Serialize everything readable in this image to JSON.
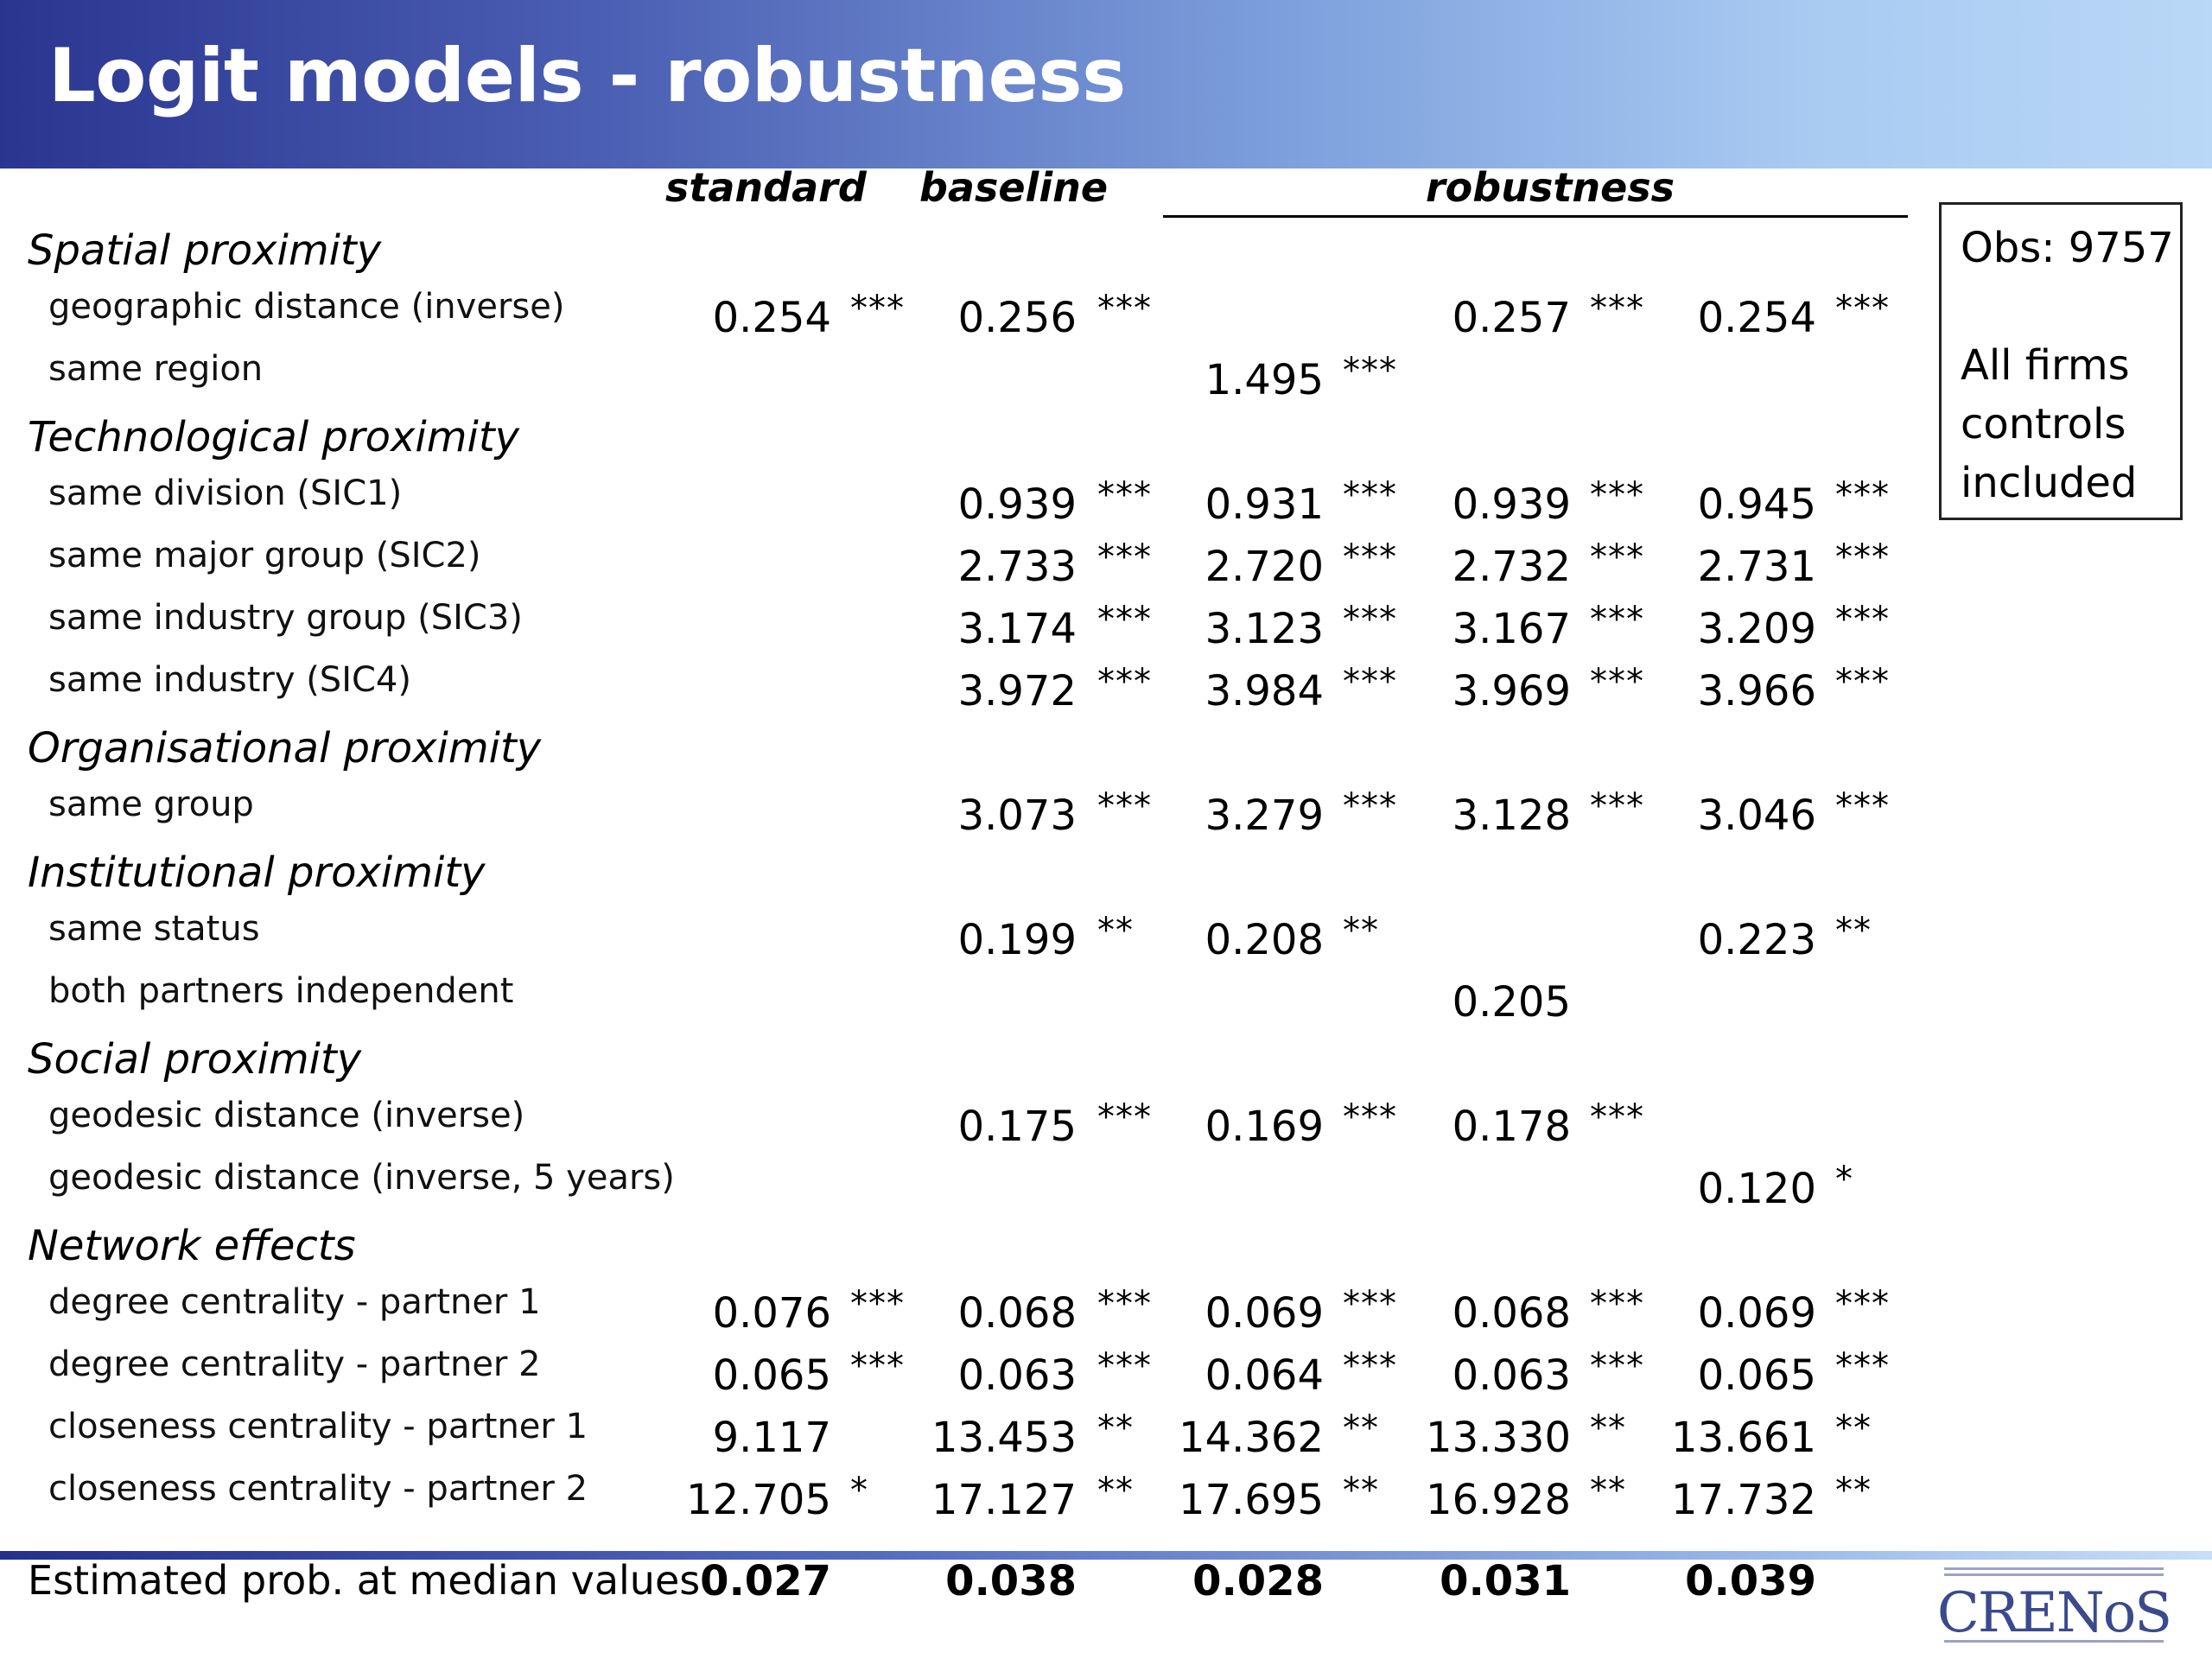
{
  "title": "Logit models - robustness",
  "columns": {
    "standard": "standard",
    "baseline": "baseline",
    "robustness": "robustness"
  },
  "obs_box": {
    "line1": "Obs: 9757",
    "line2": "All firms",
    "line3": "controls",
    "line4": "included"
  },
  "categories": [
    {
      "label": "Spatial proximity"
    },
    {
      "label": "Technological proximity"
    },
    {
      "label": "Organisational proximity"
    },
    {
      "label": "Institutional proximity"
    },
    {
      "label": "Social proximity"
    },
    {
      "label": "Network effects"
    }
  ],
  "rows": [
    {
      "label": "geographic distance (inverse)",
      "cells": [
        {
          "v": "0.254",
          "s": "***"
        },
        {
          "v": "0.256",
          "s": "***"
        },
        {
          "v": "",
          "s": ""
        },
        {
          "v": "0.257",
          "s": "***"
        },
        {
          "v": "0.254",
          "s": "***"
        }
      ]
    },
    {
      "label": "same region",
      "cells": [
        {
          "v": "",
          "s": ""
        },
        {
          "v": "",
          "s": ""
        },
        {
          "v": "1.495",
          "s": "***"
        },
        {
          "v": "",
          "s": ""
        },
        {
          "v": "",
          "s": ""
        }
      ]
    },
    {
      "label": "same division  (SIC1)",
      "cells": [
        {
          "v": "",
          "s": ""
        },
        {
          "v": "0.939",
          "s": "***"
        },
        {
          "v": "0.931",
          "s": "***"
        },
        {
          "v": "0.939",
          "s": "***"
        },
        {
          "v": "0.945",
          "s": "***"
        }
      ]
    },
    {
      "label": "same major group  (SIC2)",
      "cells": [
        {
          "v": "",
          "s": ""
        },
        {
          "v": "2.733",
          "s": "***"
        },
        {
          "v": "2.720",
          "s": "***"
        },
        {
          "v": "2.732",
          "s": "***"
        },
        {
          "v": "2.731",
          "s": "***"
        }
      ]
    },
    {
      "label": "same industry group (SIC3)",
      "cells": [
        {
          "v": "",
          "s": ""
        },
        {
          "v": "3.174",
          "s": "***"
        },
        {
          "v": "3.123",
          "s": "***"
        },
        {
          "v": "3.167",
          "s": "***"
        },
        {
          "v": "3.209",
          "s": "***"
        }
      ]
    },
    {
      "label": "same industry (SIC4)",
      "cells": [
        {
          "v": "",
          "s": ""
        },
        {
          "v": "3.972",
          "s": "***"
        },
        {
          "v": "3.984",
          "s": "***"
        },
        {
          "v": "3.969",
          "s": "***"
        },
        {
          "v": "3.966",
          "s": "***"
        }
      ]
    },
    {
      "label": "same group",
      "cells": [
        {
          "v": "",
          "s": ""
        },
        {
          "v": "3.073",
          "s": "***"
        },
        {
          "v": "3.279",
          "s": "***"
        },
        {
          "v": "3.128",
          "s": "***"
        },
        {
          "v": "3.046",
          "s": "***"
        }
      ]
    },
    {
      "label": "same status",
      "cells": [
        {
          "v": "",
          "s": ""
        },
        {
          "v": "0.199",
          "s": "**"
        },
        {
          "v": "0.208",
          "s": "**"
        },
        {
          "v": "",
          "s": ""
        },
        {
          "v": "0.223",
          "s": "**"
        }
      ]
    },
    {
      "label": "both partners independent",
      "cells": [
        {
          "v": "",
          "s": ""
        },
        {
          "v": "",
          "s": ""
        },
        {
          "v": "",
          "s": ""
        },
        {
          "v": "0.205",
          "s": ""
        },
        {
          "v": "",
          "s": ""
        }
      ]
    },
    {
      "label": "geodesic distance (inverse)",
      "cells": [
        {
          "v": "",
          "s": ""
        },
        {
          "v": "0.175",
          "s": "***"
        },
        {
          "v": "0.169",
          "s": "***"
        },
        {
          "v": "0.178",
          "s": "***"
        },
        {
          "v": "",
          "s": ""
        }
      ]
    },
    {
      "label": "geodesic distance (inverse, 5 years)",
      "cells": [
        {
          "v": "",
          "s": ""
        },
        {
          "v": "",
          "s": ""
        },
        {
          "v": "",
          "s": ""
        },
        {
          "v": "",
          "s": ""
        },
        {
          "v": "0.120",
          "s": "*"
        }
      ]
    },
    {
      "label": "degree centrality - partner 1",
      "cells": [
        {
          "v": "0.076",
          "s": "***"
        },
        {
          "v": "0.068",
          "s": "***"
        },
        {
          "v": "0.069",
          "s": "***"
        },
        {
          "v": "0.068",
          "s": "***"
        },
        {
          "v": "0.069",
          "s": "***"
        }
      ]
    },
    {
      "label": "degree centrality - partner 2",
      "cells": [
        {
          "v": "0.065",
          "s": "***"
        },
        {
          "v": "0.063",
          "s": "***"
        },
        {
          "v": "0.064",
          "s": "***"
        },
        {
          "v": "0.063",
          "s": "***"
        },
        {
          "v": "0.065",
          "s": "***"
        }
      ]
    },
    {
      "label": "closeness centrality - partner 1",
      "cells": [
        {
          "v": "9.117",
          "s": ""
        },
        {
          "v": "13.453",
          "s": "**"
        },
        {
          "v": "14.362",
          "s": "**"
        },
        {
          "v": "13.330",
          "s": "**"
        },
        {
          "v": "13.661",
          "s": "**"
        }
      ]
    },
    {
      "label": "closeness centrality - partner 2",
      "cells": [
        {
          "v": "12.705",
          "s": "*"
        },
        {
          "v": "17.127",
          "s": "**"
        },
        {
          "v": "17.695",
          "s": "**"
        },
        {
          "v": "16.928",
          "s": "**"
        },
        {
          "v": "17.732",
          "s": "**"
        }
      ]
    }
  ],
  "estimated": {
    "label": "Estimated prob. at median values",
    "values": [
      "0.027",
      "0.038",
      "0.028",
      "0.031",
      "0.039"
    ]
  },
  "logo": {
    "text": "CRENoS",
    "color": "#3b4a8c"
  },
  "colors": {
    "banner_dark": "#2a3590",
    "banner_light": "#b9d7f6",
    "title_text": "#ffffff"
  }
}
